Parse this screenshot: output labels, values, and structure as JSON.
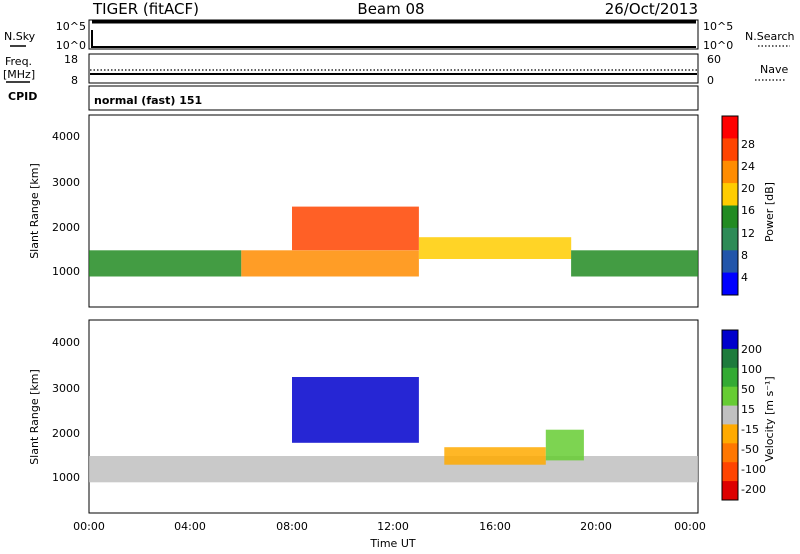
{
  "header": {
    "radar": "TIGER (fitACF)",
    "beam": "Beam 08",
    "date": "26/Oct/2013"
  },
  "strips": {
    "nsky_label": "N.Sky",
    "nsky_ticks": [
      "10^5",
      "10^0"
    ],
    "nsearch_label": "N.Search",
    "nsearch_ticks": [
      "10^5",
      "10^0"
    ],
    "freq_label_1": "Freq.",
    "freq_label_2": "[MHz]",
    "freq_ticks": [
      "18",
      "8"
    ],
    "nave_label": "Nave",
    "nave_ticks": [
      "60",
      "0"
    ],
    "cpid_label": "CPID",
    "cpid_text": "normal (fast) 151"
  },
  "panels": {
    "ylabel": "Slant Range [km]",
    "y_ticks": [
      "4000",
      "3000",
      "2000",
      "1000"
    ],
    "x_ticks": [
      "00:00",
      "04:00",
      "08:00",
      "12:00",
      "16:00",
      "20:00",
      "00:00"
    ],
    "xlabel": "Time UT"
  },
  "colorbars": {
    "power": {
      "label": "Power [dB]",
      "ticks": [
        "28",
        "24",
        "20",
        "16",
        "12",
        "8",
        "4"
      ],
      "colors": [
        "#ff0000",
        "#ff4400",
        "#ff8c00",
        "#ffcc00",
        "#228b22",
        "#2e8b57",
        "#2255aa",
        "#0000ff"
      ]
    },
    "velocity": {
      "label": "Velocity [m s⁻¹]",
      "ticks": [
        "200",
        "100",
        "50",
        "15",
        "-15",
        "-50",
        "-100",
        "-200"
      ],
      "colors": [
        "#0000cc",
        "#1e7b3c",
        "#33aa33",
        "#66cc33",
        "#c0c0c0",
        "#ffaa00",
        "#ff7700",
        "#ff4400",
        "#dd0000"
      ]
    }
  },
  "chart_data": {
    "type": "heatmap",
    "title": "TIGER (fitACF) Beam 08 26/Oct/2013",
    "xlabel": "Time UT",
    "ylabel": "Slant Range [km]",
    "xlim": [
      0,
      24
    ],
    "ylim": [
      200,
      4600
    ],
    "series": [
      {
        "name": "Power [dB]",
        "features": [
          {
            "t": [
              0,
              6
            ],
            "range": [
              900,
              1500
            ],
            "value": 14
          },
          {
            "t": [
              6,
              13
            ],
            "range": [
              900,
              1500
            ],
            "value": 24
          },
          {
            "t": [
              8,
              13
            ],
            "range": [
              1500,
              2500
            ],
            "value": 26
          },
          {
            "t": [
              13,
              19
            ],
            "range": [
              1300,
              1800
            ],
            "value": 20
          },
          {
            "t": [
              19,
              24
            ],
            "range": [
              900,
              1500
            ],
            "value": 14
          }
        ]
      },
      {
        "name": "Velocity [m s⁻¹]",
        "features": [
          {
            "t": [
              0,
              24
            ],
            "range": [
              900,
              1500
            ],
            "value": 0
          },
          {
            "t": [
              8,
              13
            ],
            "range": [
              1800,
              3300
            ],
            "value": 200
          },
          {
            "t": [
              14,
              18
            ],
            "range": [
              1300,
              1700
            ],
            "value": -50
          },
          {
            "t": [
              18,
              19.5
            ],
            "range": [
              1400,
              2100
            ],
            "value": 15
          }
        ]
      }
    ]
  }
}
